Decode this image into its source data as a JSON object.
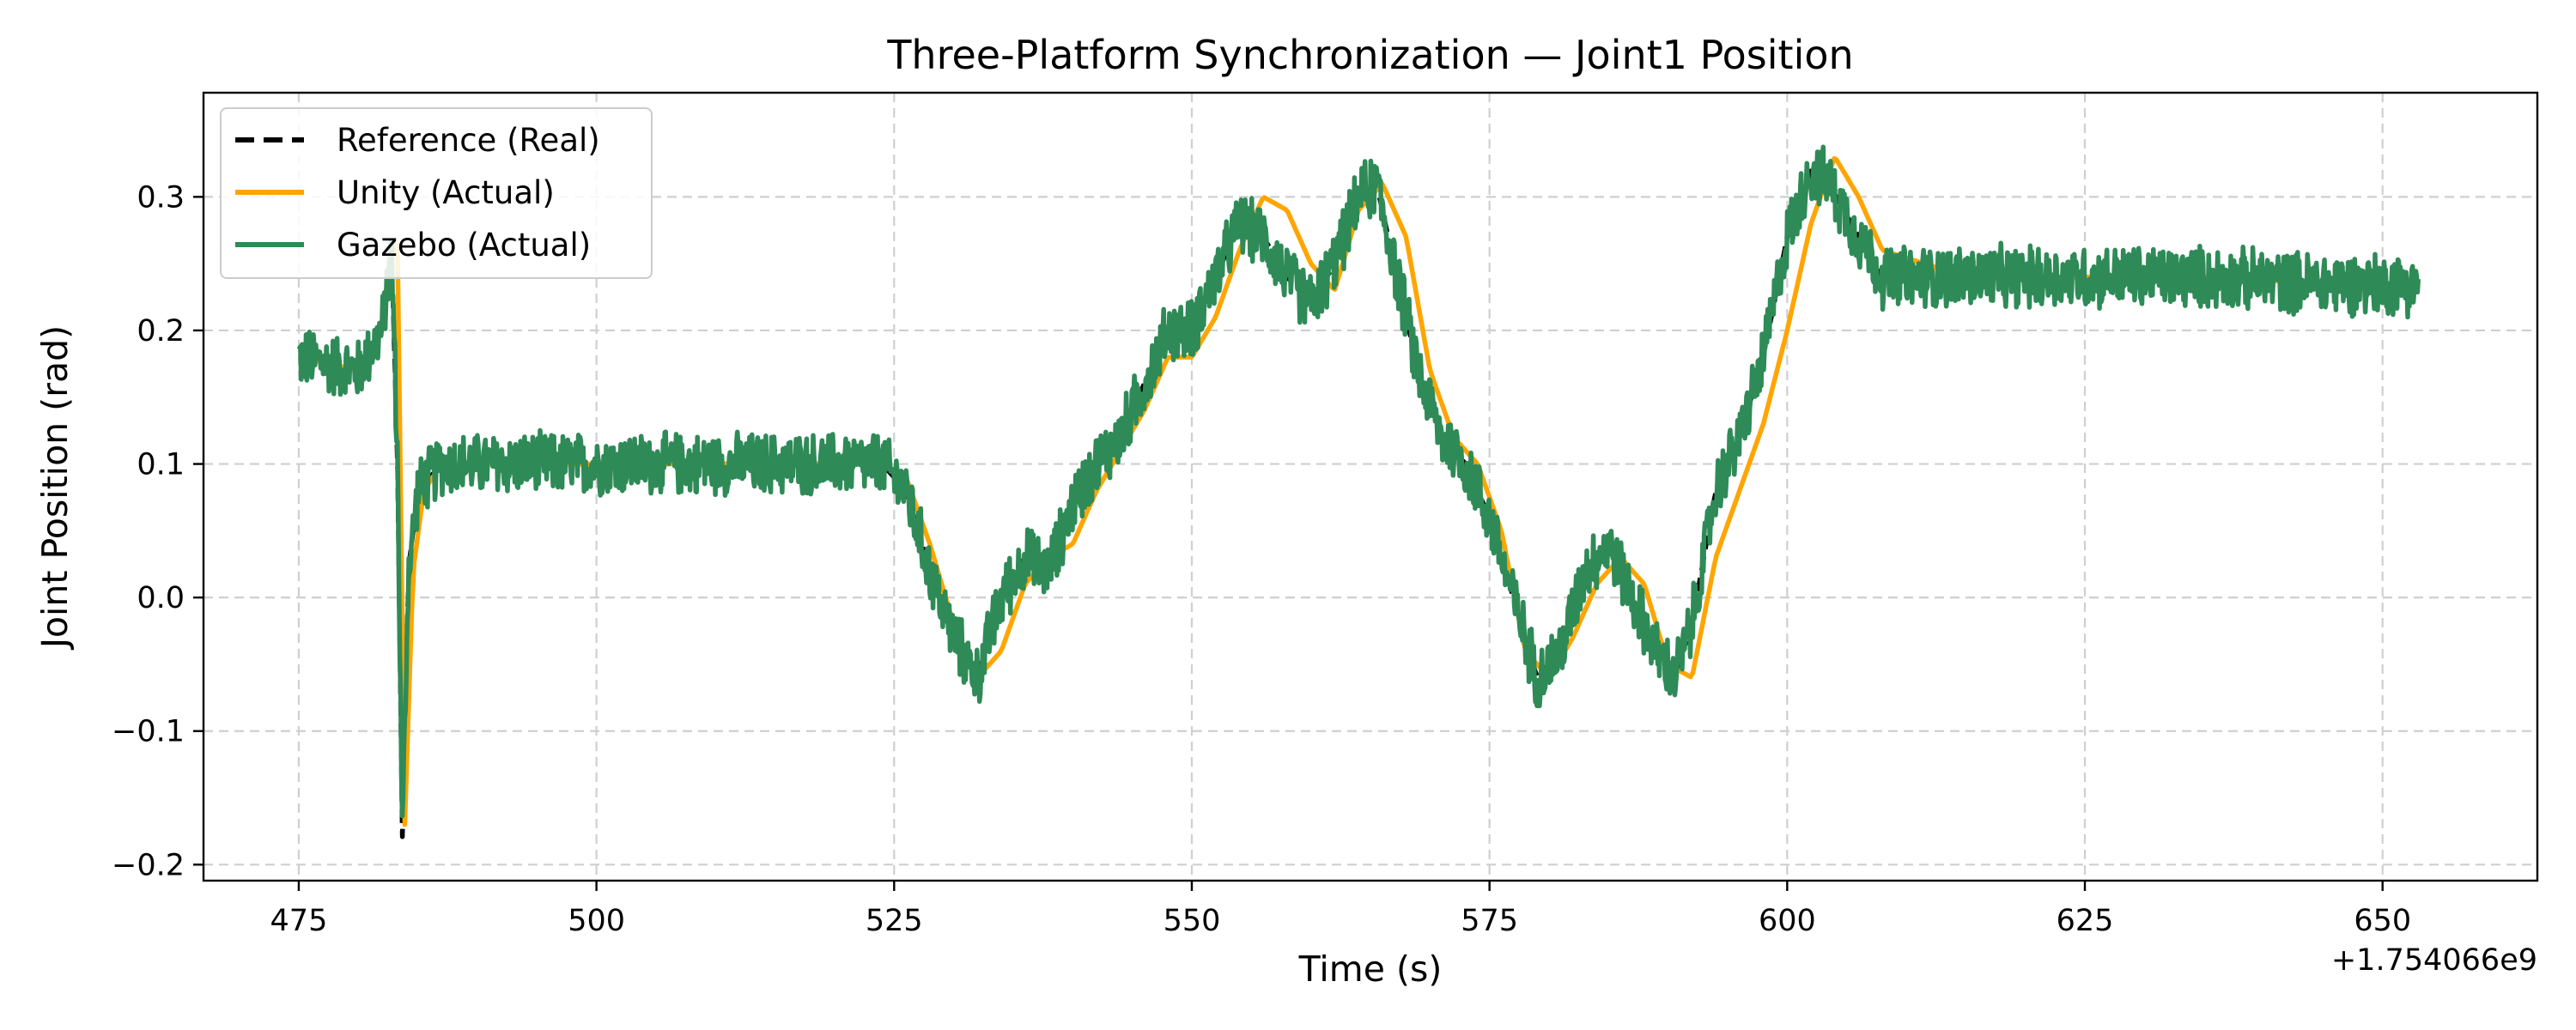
{
  "chart_data": {
    "type": "line",
    "title": "Three-Platform Synchronization — Joint1 Position",
    "xlabel": "Time (s)",
    "ylabel": "Joint Position (rad)",
    "x_offset_label": "+1.754066e9",
    "xlim": [
      467,
      663
    ],
    "ylim": [
      -0.212,
      0.378
    ],
    "xticks": [
      475,
      500,
      525,
      550,
      575,
      600,
      625,
      650
    ],
    "yticks": [
      -0.2,
      -0.1,
      0.0,
      0.1,
      0.2,
      0.3
    ],
    "ytick_labels": [
      "−0.2",
      "−0.1",
      "0.0",
      "0.1",
      "0.2",
      "0.3"
    ],
    "grid": true,
    "legend_position": "top-left",
    "series": [
      {
        "name": "Reference (Real)",
        "color": "#000000",
        "style": "dashed",
        "x": [
          475,
          480,
          482,
          482.8,
          483.3,
          483.7,
          484.2,
          485,
          487,
          490,
          500,
          510,
          520,
          524,
          526,
          528,
          530,
          532,
          534,
          536,
          538,
          540,
          542,
          544,
          546,
          548,
          550,
          552,
          554,
          556,
          558,
          560,
          562,
          564,
          565.5,
          567,
          569,
          571,
          573,
          575,
          577,
          579,
          581,
          583,
          585,
          587,
          589,
          590.5,
          592,
          594,
          596,
          598,
          600,
          602,
          603.5,
          606,
          608,
          615,
          625,
          635,
          645,
          653
        ],
        "y": [
          0.18,
          0.17,
          0.2,
          0.26,
          0.1,
          -0.18,
          0.02,
          0.08,
          0.1,
          0.1,
          0.1,
          0.1,
          0.1,
          0.1,
          0.08,
          0.02,
          -0.03,
          -0.06,
          0.0,
          0.03,
          0.02,
          0.07,
          0.1,
          0.12,
          0.16,
          0.2,
          0.2,
          0.24,
          0.28,
          0.27,
          0.24,
          0.22,
          0.25,
          0.3,
          0.31,
          0.25,
          0.17,
          0.12,
          0.1,
          0.06,
          0.0,
          -0.06,
          -0.04,
          0.02,
          0.04,
          0.0,
          -0.04,
          -0.06,
          -0.02,
          0.08,
          0.12,
          0.18,
          0.27,
          0.32,
          0.31,
          0.27,
          0.24,
          0.24,
          0.24,
          0.24,
          0.235,
          0.235
        ]
      },
      {
        "name": "Unity (Actual)",
        "color": "#FFA500",
        "style": "solid",
        "x": [
          475,
          480,
          482,
          482.8,
          483.3,
          483.9,
          484.6,
          485.5,
          487,
          490,
          500,
          510,
          520,
          524,
          526,
          528,
          530,
          532,
          534,
          536,
          538,
          540,
          542,
          544,
          546,
          548,
          550,
          552,
          554,
          556,
          558,
          560,
          562,
          564,
          566,
          568,
          570,
          572,
          574,
          576,
          578,
          580,
          582,
          584,
          586,
          588,
          590,
          592,
          594,
          596,
          598,
          600,
          602,
          604,
          606,
          608,
          615,
          625,
          635,
          645,
          653
        ],
        "y": [
          0.18,
          0.17,
          0.2,
          0.27,
          0.26,
          -0.17,
          0.02,
          0.08,
          0.1,
          0.1,
          0.1,
          0.1,
          0.1,
          0.1,
          0.09,
          0.04,
          -0.02,
          -0.06,
          -0.04,
          0.01,
          0.03,
          0.04,
          0.08,
          0.11,
          0.14,
          0.18,
          0.18,
          0.21,
          0.26,
          0.3,
          0.29,
          0.25,
          0.23,
          0.29,
          0.31,
          0.27,
          0.17,
          0.12,
          0.1,
          0.05,
          -0.04,
          -0.06,
          -0.03,
          0.01,
          0.03,
          0.01,
          -0.05,
          -0.06,
          0.03,
          0.08,
          0.13,
          0.2,
          0.28,
          0.33,
          0.3,
          0.26,
          0.24,
          0.24,
          0.24,
          0.235,
          0.235
        ]
      },
      {
        "name": "Gazebo (Actual)",
        "color": "#2E8B57",
        "style": "solid",
        "noise": 0.026,
        "x": [
          475,
          480,
          482,
          482.8,
          483.3,
          483.7,
          484.2,
          485,
          487,
          490,
          500,
          510,
          520,
          524,
          526,
          528,
          530,
          532,
          534,
          536,
          538,
          540,
          542,
          544,
          546,
          548,
          550,
          552,
          554,
          556,
          558,
          560,
          562,
          564,
          565.5,
          567,
          569,
          571,
          573,
          575,
          577,
          579,
          581,
          583,
          585,
          587,
          589,
          590.5,
          592,
          594,
          596,
          598,
          600,
          602,
          603.5,
          606,
          608,
          615,
          625,
          635,
          645,
          653
        ],
        "y": [
          0.18,
          0.17,
          0.2,
          0.26,
          0.1,
          -0.18,
          0.02,
          0.08,
          0.1,
          0.1,
          0.1,
          0.1,
          0.1,
          0.1,
          0.08,
          0.02,
          -0.03,
          -0.06,
          0.0,
          0.03,
          0.02,
          0.07,
          0.1,
          0.12,
          0.16,
          0.2,
          0.2,
          0.24,
          0.28,
          0.27,
          0.24,
          0.22,
          0.25,
          0.3,
          0.31,
          0.25,
          0.17,
          0.12,
          0.1,
          0.06,
          0.0,
          -0.06,
          -0.04,
          0.02,
          0.04,
          0.0,
          -0.04,
          -0.06,
          -0.02,
          0.08,
          0.12,
          0.18,
          0.27,
          0.32,
          0.31,
          0.27,
          0.24,
          0.24,
          0.24,
          0.24,
          0.235,
          0.235
        ]
      }
    ]
  }
}
